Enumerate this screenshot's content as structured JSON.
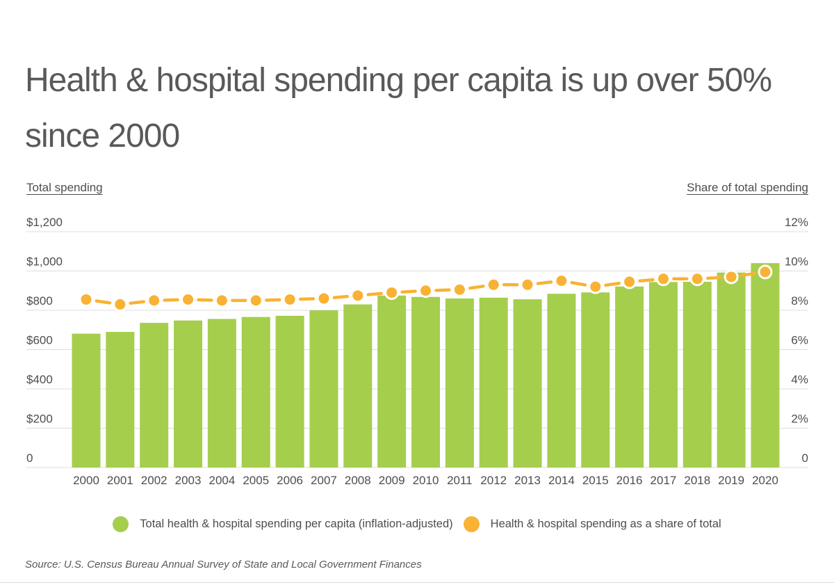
{
  "title": "Health & hospital spending per capita is up over 50% since 2000",
  "axis_headers": {
    "left": "Total spending",
    "right": "Share of total spending"
  },
  "legend": [
    {
      "label": "Total health & hospital spending per capita (inflation-adjusted)",
      "color": "#a5ce4d"
    },
    {
      "label": "Health & hospital spending as a share of total",
      "color": "#f9b233"
    }
  ],
  "source": "Source:  U.S. Census Bureau Annual Survey of State and Local Government Finances",
  "colors": {
    "bar_green": "#a5ce4d",
    "line_orange": "#f9b233",
    "dot_ring": "#ffffff",
    "grid": "#dcdcdc",
    "tick_text": "#4d4d4d",
    "title_text": "#58595b"
  },
  "chart_data": {
    "type": "bar",
    "title": "Health & hospital spending per capita is up over 50% since 2000",
    "categories": [
      "2000",
      "2001",
      "2002",
      "2003",
      "2004",
      "2005",
      "2006",
      "2007",
      "2008",
      "2009",
      "2010",
      "2011",
      "2012",
      "2013",
      "2014",
      "2015",
      "2016",
      "2017",
      "2018",
      "2019",
      "2020"
    ],
    "series": [
      {
        "name": "Total health & hospital spending per capita (inflation-adjusted)",
        "type": "bar",
        "axis": "left",
        "color": "#a5ce4d",
        "values": [
          681,
          690,
          736,
          748,
          756,
          766,
          772,
          800,
          830,
          875,
          868,
          860,
          864,
          856,
          884,
          891,
          921,
          944,
          945,
          992,
          1040
        ]
      },
      {
        "name": "Health & hospital spending as a share of total",
        "type": "line",
        "axis": "right",
        "color": "#f9b233",
        "values": [
          8.55,
          8.3,
          8.5,
          8.55,
          8.5,
          8.5,
          8.55,
          8.6,
          8.75,
          8.9,
          9.0,
          9.05,
          9.3,
          9.3,
          9.5,
          9.2,
          9.45,
          9.6,
          9.6,
          9.7,
          9.95
        ]
      }
    ],
    "left_axis": {
      "label": "Total spending",
      "ticks": [
        "$1,200",
        "$1,000",
        "$800",
        "$600",
        "$400",
        "$200",
        "0"
      ],
      "min": 0,
      "max": 1200
    },
    "right_axis": {
      "label": "Share of total spending",
      "ticks": [
        "12%",
        "10%",
        "8%",
        "6%",
        "4%",
        "2%",
        "0"
      ],
      "min": 0,
      "max": 12
    },
    "grid": true,
    "legend_position": "bottom",
    "line_style": "dashed-between-points"
  }
}
